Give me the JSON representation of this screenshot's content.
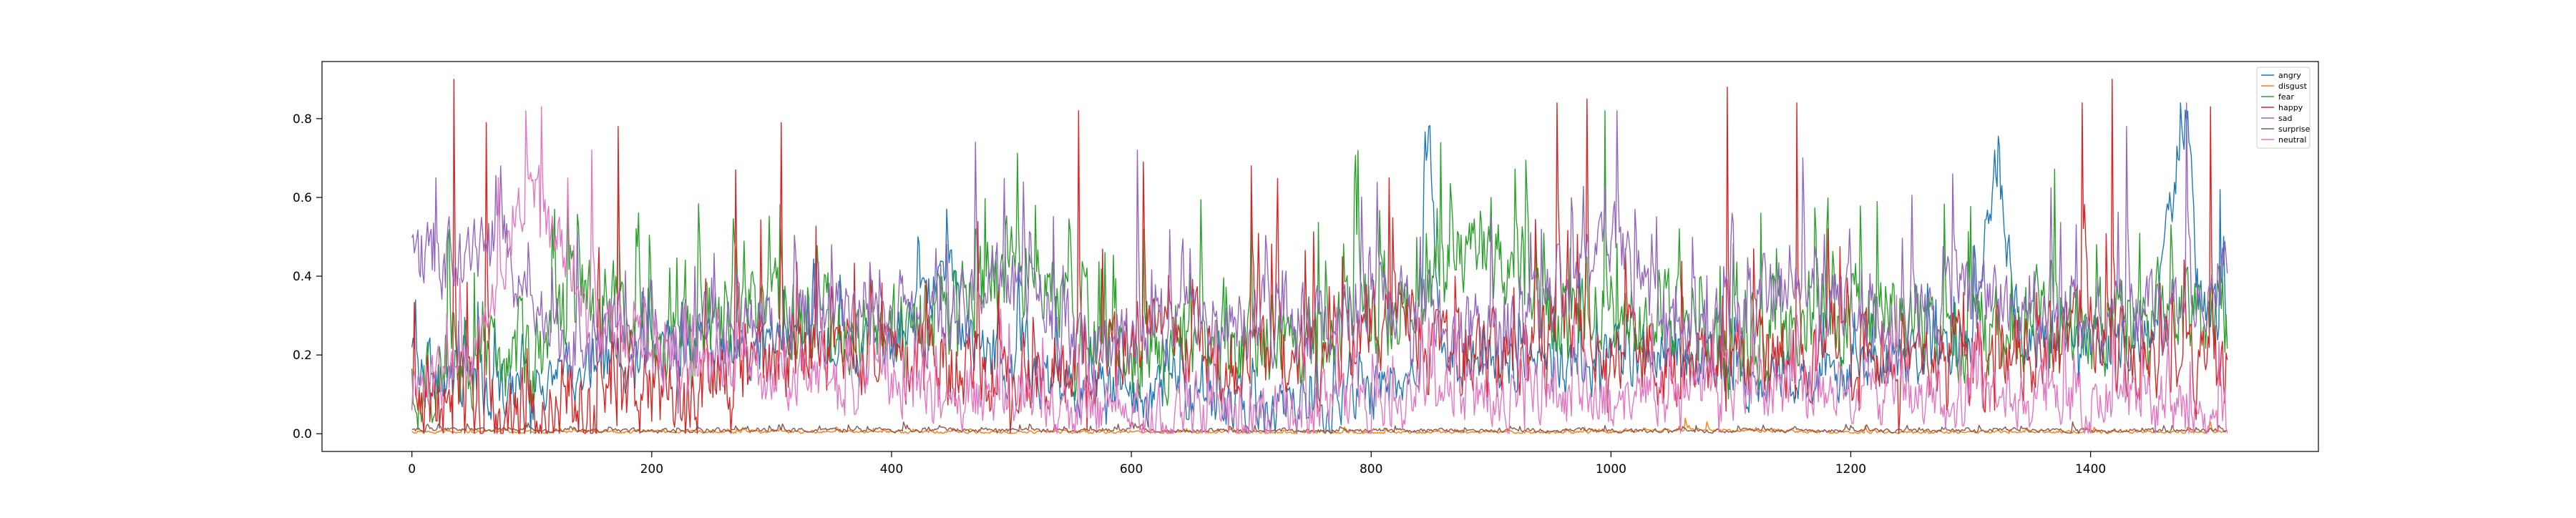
{
  "chart_data": {
    "type": "line",
    "title": "",
    "xlabel": "",
    "ylabel": "",
    "xlim": [
      -75,
      1590
    ],
    "ylim": [
      -0.045,
      0.945
    ],
    "xticks": [
      0,
      200,
      400,
      600,
      800,
      1000,
      1200,
      1400
    ],
    "xtick_labels": [
      "0",
      "200",
      "400",
      "600",
      "800",
      "1000",
      "1200",
      "1400"
    ],
    "yticks": [
      0.0,
      0.2,
      0.4,
      0.6,
      0.8
    ],
    "ytick_labels": [
      "0.0",
      "0.2",
      "0.4",
      "0.6",
      "0.8"
    ],
    "grid": false,
    "legend_position": "top-right",
    "n_samples": 1515,
    "x_start": 0,
    "x_step": 1,
    "series": [
      {
        "name": "angry",
        "color": "#1f77b4",
        "anchors": [
          [
            0,
            0.18
          ],
          [
            40,
            0.12
          ],
          [
            80,
            0.1
          ],
          [
            120,
            0.15
          ],
          [
            160,
            0.18
          ],
          [
            200,
            0.2
          ],
          [
            240,
            0.22
          ],
          [
            280,
            0.22
          ],
          [
            320,
            0.24
          ],
          [
            360,
            0.24
          ],
          [
            400,
            0.22
          ],
          [
            430,
            0.32
          ],
          [
            440,
            0.5
          ],
          [
            460,
            0.25
          ],
          [
            500,
            0.15
          ],
          [
            560,
            0.12
          ],
          [
            600,
            0.1
          ],
          [
            650,
            0.09
          ],
          [
            700,
            0.07
          ],
          [
            750,
            0.06
          ],
          [
            800,
            0.1
          ],
          [
            840,
            0.2
          ],
          [
            845,
            0.78
          ],
          [
            860,
            0.2
          ],
          [
            900,
            0.18
          ],
          [
            950,
            0.15
          ],
          [
            1000,
            0.18
          ],
          [
            1050,
            0.22
          ],
          [
            1100,
            0.14
          ],
          [
            1150,
            0.14
          ],
          [
            1200,
            0.16
          ],
          [
            1250,
            0.18
          ],
          [
            1300,
            0.22
          ],
          [
            1320,
            0.7
          ],
          [
            1340,
            0.25
          ],
          [
            1400,
            0.22
          ],
          [
            1450,
            0.26
          ],
          [
            1480,
            0.82
          ],
          [
            1490,
            0.3
          ],
          [
            1515,
            0.3
          ]
        ],
        "noise": 0.11,
        "spikes": [
          [
            848,
            0.78
          ],
          [
            1320,
            0.72
          ],
          [
            1475,
            0.84
          ],
          [
            1508,
            0.62
          ]
        ]
      },
      {
        "name": "disgust",
        "color": "#ff7f0e",
        "anchors": [
          [
            0,
            0.005
          ],
          [
            200,
            0.005
          ],
          [
            400,
            0.004
          ],
          [
            600,
            0.004
          ],
          [
            800,
            0.003
          ],
          [
            1000,
            0.004
          ],
          [
            1060,
            0.01
          ],
          [
            1200,
            0.004
          ],
          [
            1400,
            0.004
          ],
          [
            1515,
            0.005
          ]
        ],
        "noise": 0.006,
        "spikes": [
          [
            1062,
            0.04
          ],
          [
            1080,
            0.03
          ],
          [
            1212,
            0.02
          ],
          [
            1500,
            0.03
          ]
        ]
      },
      {
        "name": "fear",
        "color": "#2ca02c",
        "anchors": [
          [
            0,
            0.15
          ],
          [
            40,
            0.18
          ],
          [
            100,
            0.2
          ],
          [
            140,
            0.35
          ],
          [
            200,
            0.25
          ],
          [
            260,
            0.3
          ],
          [
            300,
            0.3
          ],
          [
            350,
            0.3
          ],
          [
            400,
            0.25
          ],
          [
            450,
            0.3
          ],
          [
            500,
            0.42
          ],
          [
            550,
            0.3
          ],
          [
            600,
            0.2
          ],
          [
            650,
            0.22
          ],
          [
            700,
            0.2
          ],
          [
            760,
            0.25
          ],
          [
            800,
            0.3
          ],
          [
            850,
            0.35
          ],
          [
            880,
            0.45
          ],
          [
            920,
            0.38
          ],
          [
            960,
            0.3
          ],
          [
            1000,
            0.3
          ],
          [
            1050,
            0.3
          ],
          [
            1100,
            0.2
          ],
          [
            1150,
            0.3
          ],
          [
            1200,
            0.3
          ],
          [
            1250,
            0.3
          ],
          [
            1300,
            0.25
          ],
          [
            1350,
            0.28
          ],
          [
            1400,
            0.26
          ],
          [
            1450,
            0.3
          ],
          [
            1515,
            0.3
          ]
        ],
        "noise": 0.18,
        "spikes": [
          [
            130,
            0.62
          ],
          [
            520,
            0.58
          ],
          [
            610,
            0.52
          ],
          [
            900,
            0.6
          ],
          [
            995,
            0.82
          ],
          [
            1125,
            0.56
          ],
          [
            1180,
            0.52
          ]
        ]
      },
      {
        "name": "happy",
        "color": "#d62728",
        "anchors": [
          [
            0,
            0.06
          ],
          [
            40,
            0.06
          ],
          [
            80,
            0.05
          ],
          [
            120,
            0.06
          ],
          [
            160,
            0.08
          ],
          [
            200,
            0.1
          ],
          [
            240,
            0.1
          ],
          [
            280,
            0.15
          ],
          [
            320,
            0.2
          ],
          [
            360,
            0.22
          ],
          [
            400,
            0.2
          ],
          [
            440,
            0.18
          ],
          [
            480,
            0.15
          ],
          [
            520,
            0.15
          ],
          [
            560,
            0.2
          ],
          [
            600,
            0.25
          ],
          [
            640,
            0.25
          ],
          [
            680,
            0.2
          ],
          [
            720,
            0.2
          ],
          [
            760,
            0.2
          ],
          [
            800,
            0.3
          ],
          [
            840,
            0.25
          ],
          [
            880,
            0.2
          ],
          [
            920,
            0.2
          ],
          [
            960,
            0.3
          ],
          [
            1000,
            0.25
          ],
          [
            1050,
            0.15
          ],
          [
            1100,
            0.18
          ],
          [
            1150,
            0.2
          ],
          [
            1200,
            0.22
          ],
          [
            1250,
            0.22
          ],
          [
            1300,
            0.2
          ],
          [
            1350,
            0.22
          ],
          [
            1400,
            0.25
          ],
          [
            1450,
            0.2
          ],
          [
            1515,
            0.15
          ]
        ],
        "noise": 0.17,
        "spikes": [
          [
            35,
            0.9
          ],
          [
            62,
            0.79
          ],
          [
            172,
            0.78
          ],
          [
            270,
            0.67
          ],
          [
            308,
            0.79
          ],
          [
            556,
            0.82
          ],
          [
            610,
            0.69
          ],
          [
            700,
            0.68
          ],
          [
            815,
            0.65
          ],
          [
            955,
            0.84
          ],
          [
            980,
            0.85
          ],
          [
            1097,
            0.88
          ],
          [
            1155,
            0.84
          ],
          [
            1393,
            0.84
          ],
          [
            1418,
            0.9
          ],
          [
            1500,
            0.83
          ]
        ]
      },
      {
        "name": "sad",
        "color": "#9467bd",
        "anchors": [
          [
            0,
            0.48
          ],
          [
            20,
            0.45
          ],
          [
            40,
            0.42
          ],
          [
            60,
            0.48
          ],
          [
            80,
            0.45
          ],
          [
            100,
            0.3
          ],
          [
            120,
            0.25
          ],
          [
            160,
            0.25
          ],
          [
            200,
            0.25
          ],
          [
            250,
            0.25
          ],
          [
            300,
            0.28
          ],
          [
            350,
            0.3
          ],
          [
            400,
            0.28
          ],
          [
            440,
            0.25
          ],
          [
            480,
            0.4
          ],
          [
            520,
            0.35
          ],
          [
            560,
            0.2
          ],
          [
            600,
            0.25
          ],
          [
            640,
            0.28
          ],
          [
            680,
            0.3
          ],
          [
            720,
            0.3
          ],
          [
            760,
            0.3
          ],
          [
            800,
            0.35
          ],
          [
            840,
            0.3
          ],
          [
            880,
            0.25
          ],
          [
            920,
            0.25
          ],
          [
            960,
            0.35
          ],
          [
            1000,
            0.5
          ],
          [
            1040,
            0.3
          ],
          [
            1080,
            0.25
          ],
          [
            1120,
            0.35
          ],
          [
            1160,
            0.38
          ],
          [
            1200,
            0.3
          ],
          [
            1250,
            0.3
          ],
          [
            1300,
            0.35
          ],
          [
            1350,
            0.35
          ],
          [
            1400,
            0.3
          ],
          [
            1450,
            0.3
          ],
          [
            1515,
            0.4
          ]
        ],
        "noise": 0.15,
        "spikes": [
          [
            20,
            0.65
          ],
          [
            470,
            0.74
          ],
          [
            605,
            0.72
          ],
          [
            1005,
            0.82
          ],
          [
            1160,
            0.7
          ],
          [
            1285,
            0.66
          ],
          [
            1430,
            0.78
          ],
          [
            1480,
            0.84
          ]
        ]
      },
      {
        "name": "surprise",
        "color": "#8c564b",
        "anchors": [
          [
            0,
            0.01
          ],
          [
            100,
            0.01
          ],
          [
            200,
            0.008
          ],
          [
            400,
            0.01
          ],
          [
            600,
            0.008
          ],
          [
            800,
            0.008
          ],
          [
            1000,
            0.008
          ],
          [
            1200,
            0.008
          ],
          [
            1400,
            0.008
          ],
          [
            1515,
            0.01
          ]
        ],
        "noise": 0.008,
        "spikes": [
          [
            12,
            0.02
          ],
          [
            95,
            0.03
          ],
          [
            410,
            0.03
          ],
          [
            600,
            0.03
          ],
          [
            820,
            0.02
          ],
          [
            1385,
            0.03
          ]
        ]
      },
      {
        "name": "neutral",
        "color": "#e377c2",
        "anchors": [
          [
            0,
            0.12
          ],
          [
            30,
            0.15
          ],
          [
            60,
            0.25
          ],
          [
            80,
            0.5
          ],
          [
            100,
            0.65
          ],
          [
            120,
            0.5
          ],
          [
            140,
            0.35
          ],
          [
            160,
            0.25
          ],
          [
            200,
            0.2
          ],
          [
            240,
            0.18
          ],
          [
            280,
            0.15
          ],
          [
            320,
            0.15
          ],
          [
            360,
            0.12
          ],
          [
            400,
            0.12
          ],
          [
            440,
            0.08
          ],
          [
            480,
            0.1
          ],
          [
            520,
            0.08
          ],
          [
            560,
            0.06
          ],
          [
            600,
            0.05
          ],
          [
            650,
            0.04
          ],
          [
            700,
            0.05
          ],
          [
            750,
            0.06
          ],
          [
            800,
            0.08
          ],
          [
            850,
            0.1
          ],
          [
            900,
            0.1
          ],
          [
            950,
            0.08
          ],
          [
            1000,
            0.08
          ],
          [
            1050,
            0.1
          ],
          [
            1100,
            0.1
          ],
          [
            1150,
            0.12
          ],
          [
            1200,
            0.1
          ],
          [
            1250,
            0.08
          ],
          [
            1300,
            0.08
          ],
          [
            1350,
            0.08
          ],
          [
            1400,
            0.08
          ],
          [
            1450,
            0.08
          ],
          [
            1515,
            0.05
          ]
        ],
        "noise": 0.12,
        "spikes": [
          [
            95,
            0.82
          ],
          [
            108,
            0.83
          ],
          [
            150,
            0.72
          ],
          [
            72,
            0.65
          ],
          [
            255,
            0.32
          ]
        ]
      }
    ]
  }
}
